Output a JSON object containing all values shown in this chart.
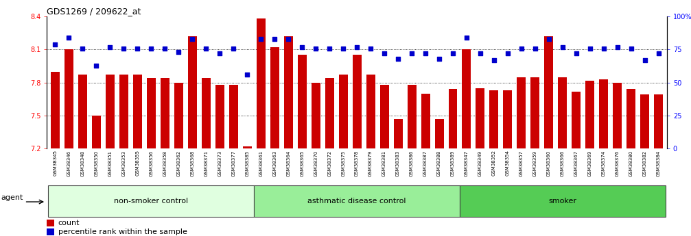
{
  "title": "GDS1269 / 209622_at",
  "ylim": [
    7.2,
    8.4
  ],
  "ylim_right": [
    0,
    100
  ],
  "yticks_left": [
    7.2,
    7.5,
    7.8,
    8.1,
    8.4
  ],
  "yticks_right": [
    0,
    25,
    50,
    75,
    100
  ],
  "ytick_labels_right": [
    "0",
    "25",
    "50",
    "75",
    "100%"
  ],
  "bar_color": "#CC0000",
  "dot_color": "#0000CC",
  "background_color": "#ffffff",
  "categories": [
    "GSM38345",
    "GSM38346",
    "GSM38348",
    "GSM38350",
    "GSM38351",
    "GSM38353",
    "GSM38355",
    "GSM38356",
    "GSM38358",
    "GSM38362",
    "GSM38368",
    "GSM38371",
    "GSM38373",
    "GSM38377",
    "GSM38385",
    "GSM38361",
    "GSM38363",
    "GSM38364",
    "GSM38365",
    "GSM38370",
    "GSM38372",
    "GSM38375",
    "GSM38378",
    "GSM38379",
    "GSM38381",
    "GSM38383",
    "GSM38386",
    "GSM38387",
    "GSM38388",
    "GSM38389",
    "GSM38347",
    "GSM38349",
    "GSM38352",
    "GSM38354",
    "GSM38357",
    "GSM38359",
    "GSM38360",
    "GSM38366",
    "GSM38367",
    "GSM38369",
    "GSM38374",
    "GSM38376",
    "GSM38380",
    "GSM38382",
    "GSM38384"
  ],
  "bar_values": [
    7.9,
    8.1,
    7.87,
    7.5,
    7.87,
    7.87,
    7.87,
    7.84,
    7.84,
    7.8,
    8.22,
    7.84,
    7.78,
    7.78,
    7.22,
    8.38,
    8.12,
    8.22,
    8.05,
    7.8,
    7.84,
    7.87,
    8.05,
    7.87,
    7.78,
    7.47,
    7.78,
    7.7,
    7.47,
    7.74,
    8.1,
    7.75,
    7.73,
    7.73,
    7.85,
    7.85,
    8.22,
    7.85,
    7.72,
    7.82,
    7.83,
    7.8,
    7.74,
    7.69,
    7.69
  ],
  "dot_values_pct": [
    79,
    84,
    76,
    63,
    77,
    76,
    76,
    76,
    76,
    73,
    83,
    76,
    72,
    76,
    56,
    83,
    83,
    83,
    77,
    76,
    76,
    76,
    77,
    76,
    72,
    68,
    72,
    72,
    68,
    72,
    84,
    72,
    67,
    72,
    76,
    76,
    83,
    77,
    72,
    76,
    76,
    77,
    76,
    67,
    72
  ],
  "groups": [
    {
      "label": "non-smoker control",
      "start": 0,
      "end": 15,
      "color": "#e0ffe0"
    },
    {
      "label": "asthmatic disease control",
      "start": 15,
      "end": 30,
      "color": "#99ee99"
    },
    {
      "label": "smoker",
      "start": 30,
      "end": 45,
      "color": "#55cc55"
    }
  ],
  "grid_values": [
    7.5,
    7.8,
    8.1
  ],
  "legend_items": [
    {
      "label": "count",
      "color": "#CC0000"
    },
    {
      "label": "percentile rank within the sample",
      "color": "#0000CC"
    }
  ],
  "xticklabel_bg": "#dddddd",
  "agent_label": "agent"
}
